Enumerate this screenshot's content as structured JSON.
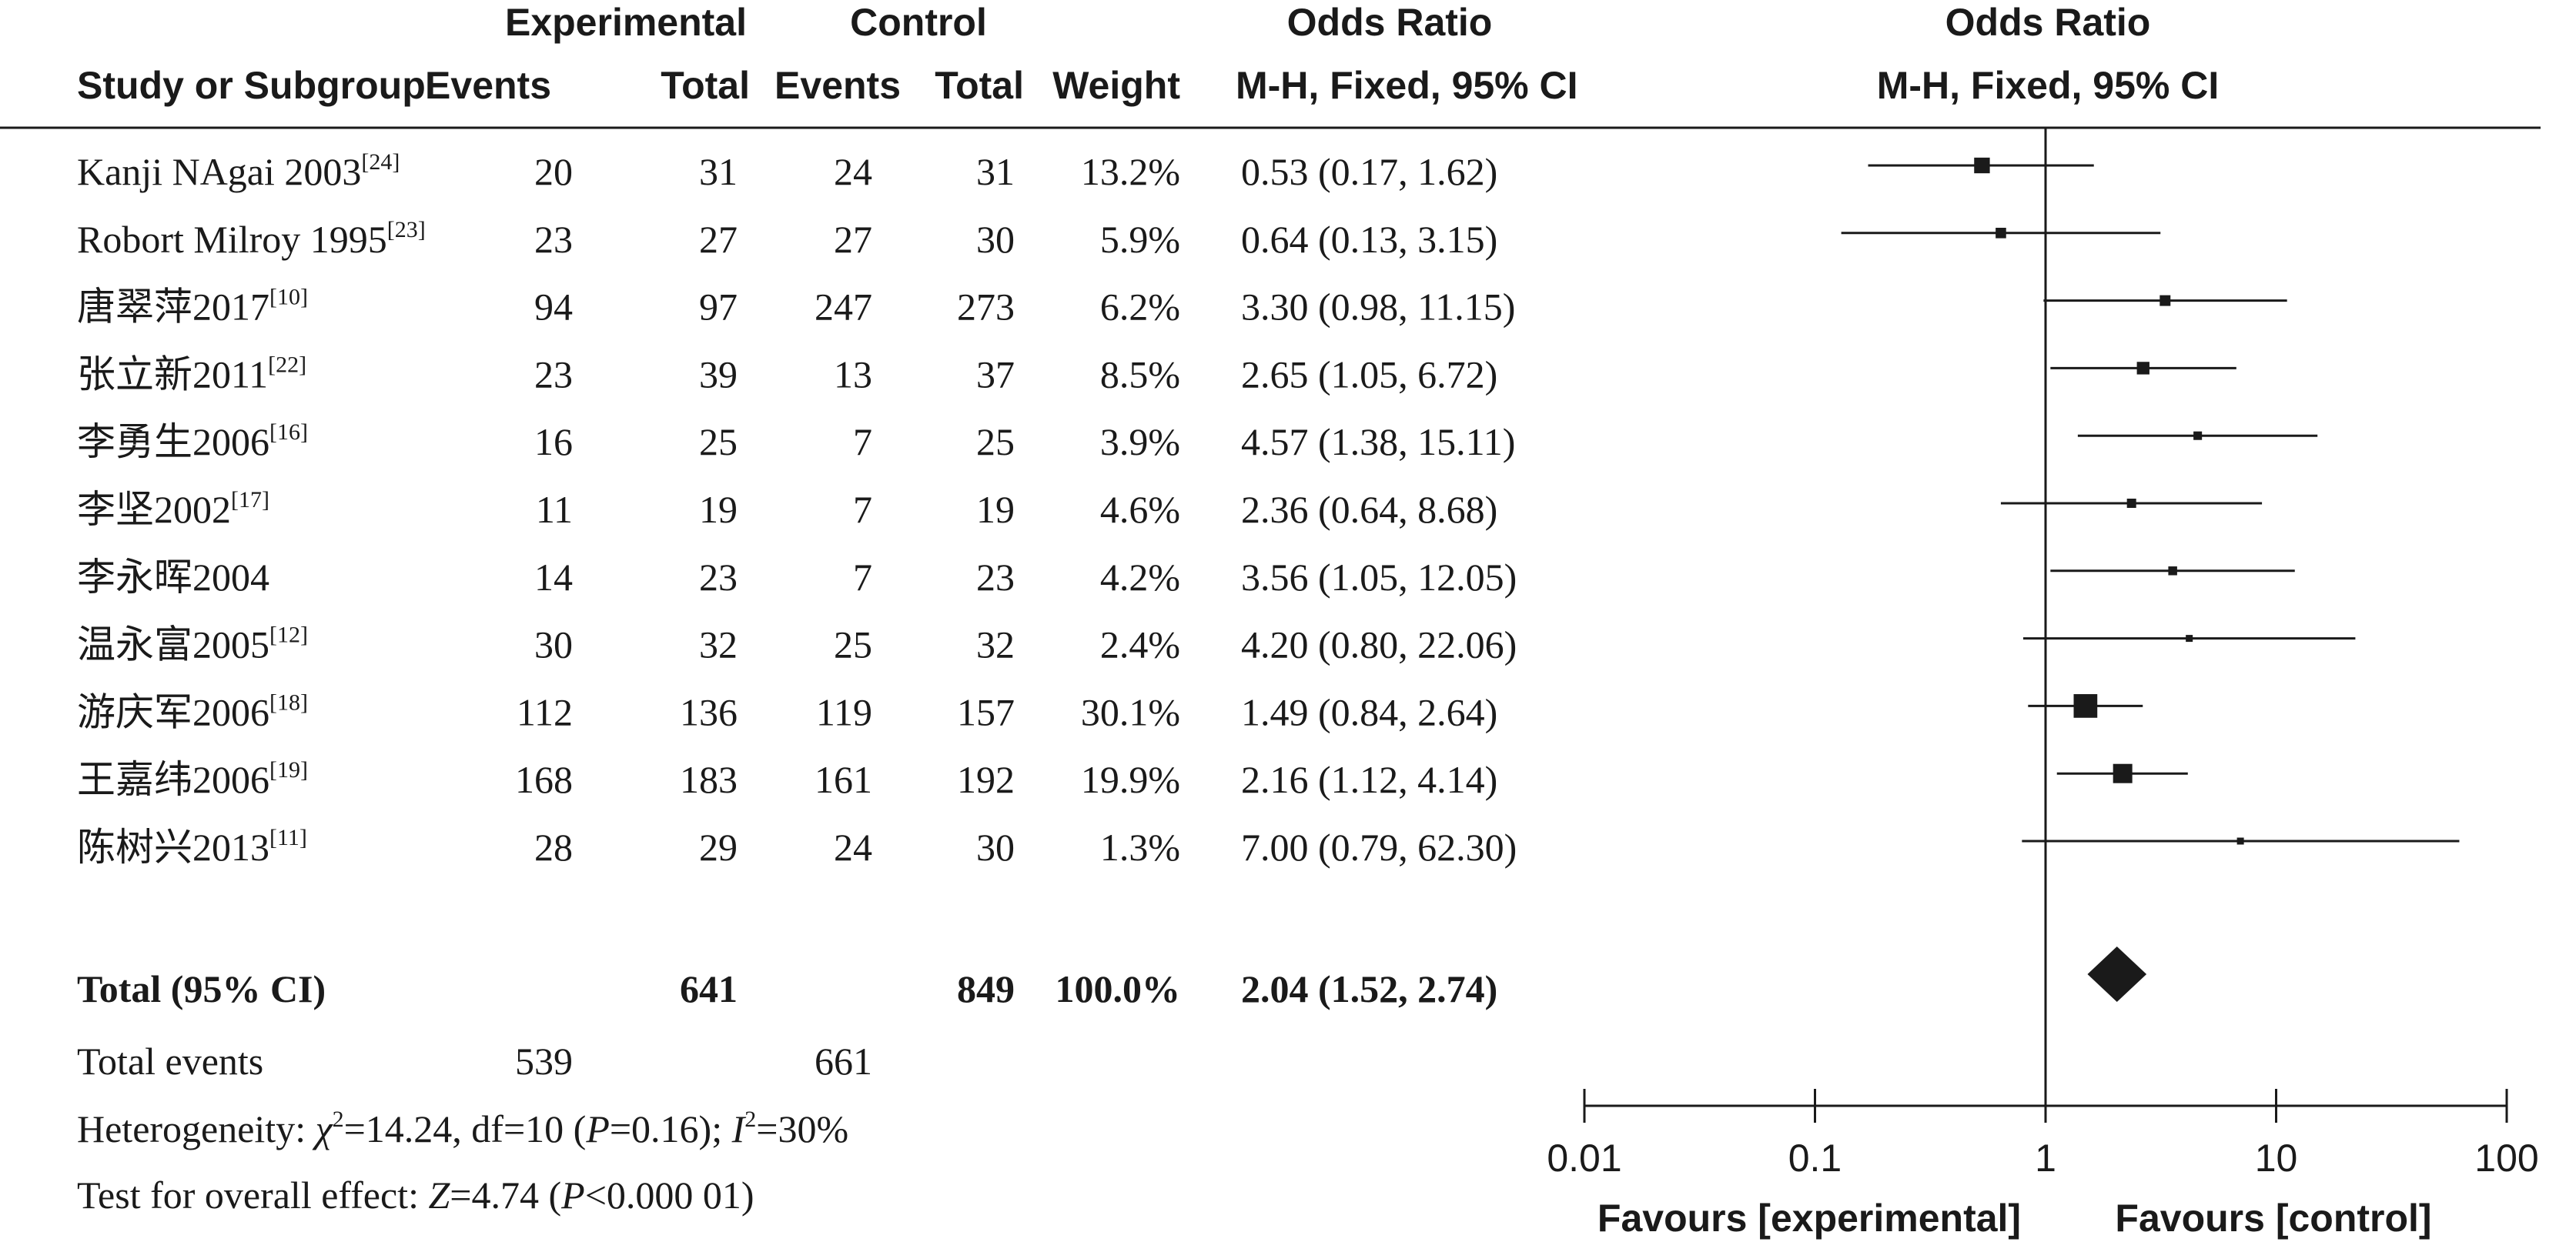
{
  "header": {
    "group_experimental": "Experimental",
    "group_control": "Control",
    "odds_ratio_title": "Odds Ratio",
    "col_study": "Study or Subgroup",
    "col_events": "Events",
    "col_total": "Total",
    "col_weight": "Weight",
    "method": "M-H, Fixed, 95% CI",
    "plot_title": "Odds Ratio",
    "plot_method": "M-H, Fixed, 95% CI"
  },
  "studies": [
    {
      "name": "Kanji NAgai 2003",
      "ref": "[24]",
      "exp_events": "20",
      "exp_total": "31",
      "ctl_events": "24",
      "ctl_total": "31",
      "weight": "13.2%",
      "ci_text": "0.53 (0.17, 1.62)"
    },
    {
      "name": "Robort Milroy 1995",
      "ref": "[23]",
      "exp_events": "23",
      "exp_total": "27",
      "ctl_events": "27",
      "ctl_total": "30",
      "weight": "5.9%",
      "ci_text": "0.64 (0.13, 3.15)"
    },
    {
      "name": "唐翠萍2017",
      "ref": "[10]",
      "exp_events": "94",
      "exp_total": "97",
      "ctl_events": "247",
      "ctl_total": "273",
      "weight": "6.2%",
      "ci_text": "3.30 (0.98, 11.15)"
    },
    {
      "name": "张立新2011",
      "ref": "[22]",
      "exp_events": "23",
      "exp_total": "39",
      "ctl_events": "13",
      "ctl_total": "37",
      "weight": "8.5%",
      "ci_text": "2.65 (1.05, 6.72)"
    },
    {
      "name": "李勇生2006",
      "ref": "[16]",
      "exp_events": "16",
      "exp_total": "25",
      "ctl_events": "7",
      "ctl_total": "25",
      "weight": "3.9%",
      "ci_text": "4.57 (1.38, 15.11)"
    },
    {
      "name": "李坚2002",
      "ref": "[17]",
      "exp_events": "11",
      "exp_total": "19",
      "ctl_events": "7",
      "ctl_total": "19",
      "weight": "4.6%",
      "ci_text": "2.36 (0.64, 8.68)"
    },
    {
      "name": "李永晖2004",
      "ref": "",
      "exp_events": "14",
      "exp_total": "23",
      "ctl_events": "7",
      "ctl_total": "23",
      "weight": "4.2%",
      "ci_text": "3.56 (1.05, 12.05)"
    },
    {
      "name": "温永富2005",
      "ref": "[12]",
      "exp_events": "30",
      "exp_total": "32",
      "ctl_events": "25",
      "ctl_total": "32",
      "weight": "2.4%",
      "ci_text": "4.20 (0.80, 22.06)"
    },
    {
      "name": "游庆军2006",
      "ref": "[18]",
      "exp_events": "112",
      "exp_total": "136",
      "ctl_events": "119",
      "ctl_total": "157",
      "weight": "30.1%",
      "ci_text": "1.49 (0.84, 2.64)"
    },
    {
      "name": "王嘉纬2006",
      "ref": "[19]",
      "exp_events": "168",
      "exp_total": "183",
      "ctl_events": "161",
      "ctl_total": "192",
      "weight": "19.9%",
      "ci_text": "2.16 (1.12, 4.14)"
    },
    {
      "name": "陈树兴2013",
      "ref": "[11]",
      "exp_events": "28",
      "exp_total": "29",
      "ctl_events": "24",
      "ctl_total": "30",
      "weight": "1.3%",
      "ci_text": "7.00 (0.79, 62.30)"
    }
  ],
  "total": {
    "label": "Total (95% CI)",
    "exp_total": "641",
    "ctl_total": "849",
    "weight": "100.0%",
    "ci_text": "2.04 (1.52, 2.74)"
  },
  "total_events": {
    "label": "Total events",
    "exp": "539",
    "ctl": "661"
  },
  "heterogeneity": {
    "label": "Heterogeneity: ",
    "chi_symbol": "χ",
    "chi_sup": "2",
    "chi_value": "=14.24, df=10 (",
    "p_symbol": "P",
    "p_value": "=0.16); ",
    "i_symbol": "I",
    "i_sup": "2",
    "i_value": "=30%"
  },
  "overall_effect": {
    "label": "Test for overall effect: ",
    "z_symbol": "Z",
    "z_value": "=4.74 (",
    "p_symbol": "P",
    "p_value": "<0.000 01)"
  },
  "chart_data": {
    "type": "forest",
    "scale": "log",
    "xlim": [
      0.01,
      100
    ],
    "ticks": [
      0.01,
      0.1,
      1,
      10,
      100
    ],
    "tick_labels": [
      "0.01",
      "0.1",
      "1",
      "10",
      "100"
    ],
    "null_line": 1,
    "favours_left": "Favours [experimental]",
    "favours_right": "Favours [control]",
    "studies": [
      {
        "or": 0.53,
        "lo": 0.17,
        "hi": 1.62,
        "weight": 13.2
      },
      {
        "or": 0.64,
        "lo": 0.13,
        "hi": 3.15,
        "weight": 5.9
      },
      {
        "or": 3.3,
        "lo": 0.98,
        "hi": 11.15,
        "weight": 6.2
      },
      {
        "or": 2.65,
        "lo": 1.05,
        "hi": 6.72,
        "weight": 8.5
      },
      {
        "or": 4.57,
        "lo": 1.38,
        "hi": 15.11,
        "weight": 3.9
      },
      {
        "or": 2.36,
        "lo": 0.64,
        "hi": 8.68,
        "weight": 4.6
      },
      {
        "or": 3.56,
        "lo": 1.05,
        "hi": 12.05,
        "weight": 4.2
      },
      {
        "or": 4.2,
        "lo": 0.8,
        "hi": 22.06,
        "weight": 2.4
      },
      {
        "or": 1.49,
        "lo": 0.84,
        "hi": 2.64,
        "weight": 30.1
      },
      {
        "or": 2.16,
        "lo": 1.12,
        "hi": 4.14,
        "weight": 19.9
      },
      {
        "or": 7.0,
        "lo": 0.79,
        "hi": 62.3,
        "weight": 1.3
      }
    ],
    "total": {
      "or": 2.04,
      "lo": 1.52,
      "hi": 2.74
    }
  }
}
